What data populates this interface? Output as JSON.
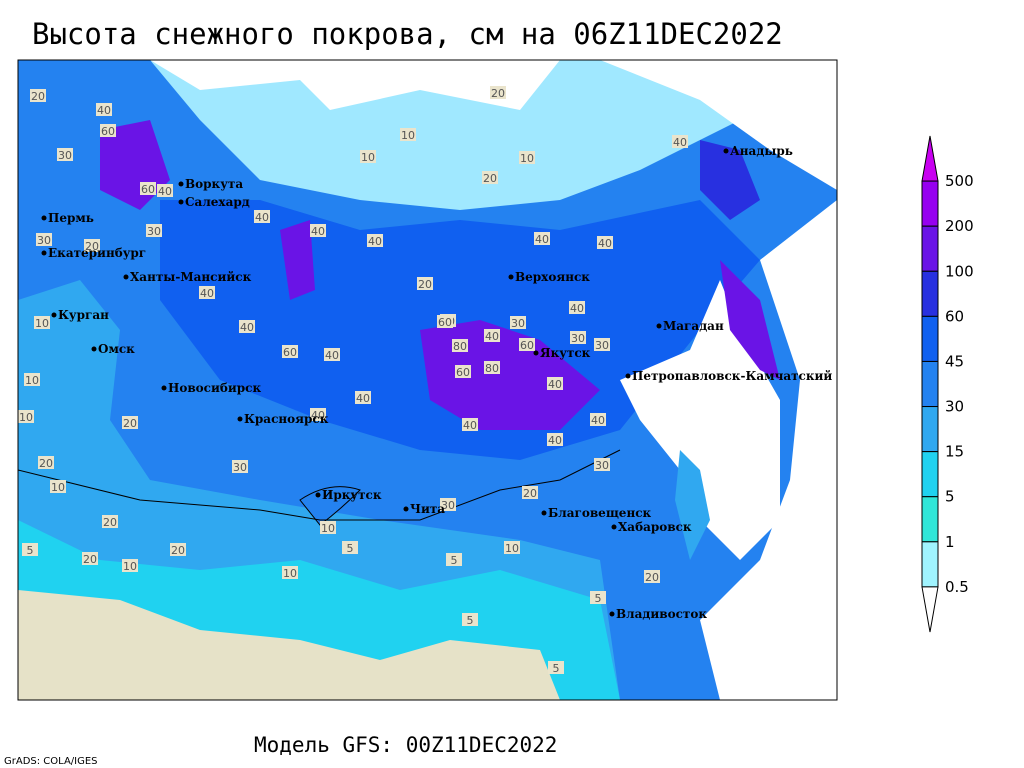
{
  "header": {
    "title": "Высота снежного покрова, см на 06Z11DEC2022"
  },
  "map": {
    "cities": [
      {
        "label": "Пермь"
      },
      {
        "label": "Екатеринбург"
      },
      {
        "label": "Курган"
      },
      {
        "label": "Омск"
      },
      {
        "label": "Новосибирск"
      },
      {
        "label": "Красноярск"
      },
      {
        "label": "Иркутск"
      },
      {
        "label": "Чита"
      },
      {
        "label": "Благовещенск"
      },
      {
        "label": "Хабаровск"
      },
      {
        "label": "Владивосток"
      },
      {
        "label": "Верхоянск"
      },
      {
        "label": "Якутск"
      },
      {
        "label": "Магадан"
      },
      {
        "label": "Петропавловск-Камчатский"
      },
      {
        "label": "Анадырь"
      },
      {
        "label": "Ханты-Мансийск"
      },
      {
        "label": "Салехард"
      },
      {
        "label": "Воркута"
      }
    ],
    "contour_labels": [
      "20",
      "40",
      "60",
      "30",
      "60",
      "40",
      "40",
      "30",
      "20",
      "30",
      "40",
      "20",
      "10",
      "10",
      "10",
      "20",
      "5",
      "40",
      "40",
      "40",
      "40",
      "60",
      "40",
      "40",
      "40",
      "40",
      "40",
      "60",
      "40",
      "80",
      "60",
      "80",
      "40",
      "60",
      "30",
      "40",
      "30",
      "40",
      "10",
      "20",
      "10",
      "10",
      "20",
      "30",
      "20",
      "10",
      "10",
      "20",
      "5",
      "10",
      "5",
      "5",
      "20",
      "5",
      "5",
      "30",
      "60",
      "40",
      "30",
      "40",
      "10",
      "20",
      "30",
      "20",
      "10",
      "20"
    ]
  },
  "legend": {
    "levels": [
      {
        "label": "500",
        "color": "#c800f0"
      },
      {
        "label": "200",
        "color": "#9600f0"
      },
      {
        "label": "100",
        "color": "#6a14e6"
      },
      {
        "label": "60",
        "color": "#2830e0"
      },
      {
        "label": "45",
        "color": "#1060f0"
      },
      {
        "label": "30",
        "color": "#2482f0"
      },
      {
        "label": "15",
        "color": "#30a8f0"
      },
      {
        "label": "5",
        "color": "#20d2f0"
      },
      {
        "label": "1",
        "color": "#30e6d8"
      },
      {
        "label": "0.5",
        "color": "#a0f4ff"
      }
    ]
  },
  "footer": {
    "model": "Модель GFS: 00Z11DEC2022",
    "credit": "GrADS: COLA/IGES"
  }
}
